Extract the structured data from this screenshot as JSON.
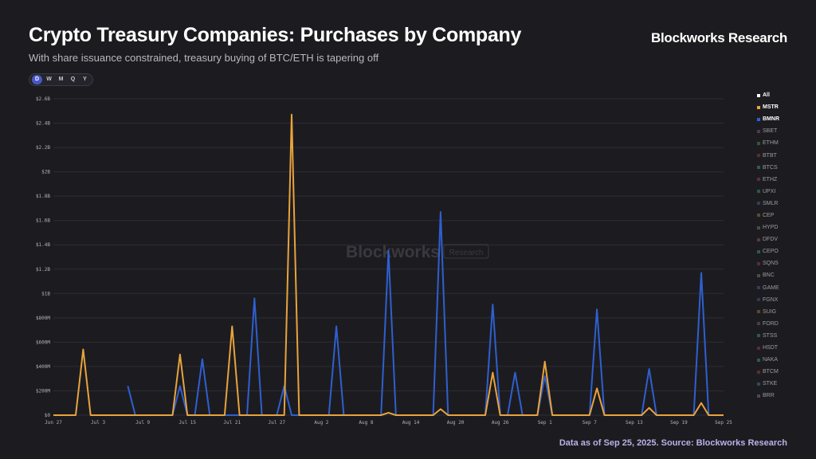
{
  "header": {
    "title": "Crypto Treasury Companies: Purchases by Company",
    "subtitle": "With share issuance constrained, treasury buying of BTC/ETH is tapering off",
    "brand": "Blockworks Research"
  },
  "footer": {
    "source": "Data as of Sep 25, 2025. Source: Blockworks Research"
  },
  "watermark": {
    "name": "Blockworks",
    "tag": "Research"
  },
  "range_selector": {
    "options": [
      "D",
      "W",
      "M",
      "Q",
      "Y"
    ],
    "selected": "D"
  },
  "legend": [
    {
      "label": "All",
      "color": "#ffffff",
      "active": true
    },
    {
      "label": "MSTR",
      "color": "#e8a33d",
      "active": true
    },
    {
      "label": "BMNR",
      "color": "#2f5fd0",
      "active": true
    },
    {
      "label": "SBET",
      "color": "#4a3a55",
      "active": false
    },
    {
      "label": "ETHM",
      "color": "#2f5a30",
      "active": false
    },
    {
      "label": "BTBT",
      "color": "#5a2d2d",
      "active": false
    },
    {
      "label": "BTCS",
      "color": "#2d5a55",
      "active": false
    },
    {
      "label": "ETHZ",
      "color": "#5a2d3a",
      "active": false
    },
    {
      "label": "UPXI",
      "color": "#2d5a3a",
      "active": false
    },
    {
      "label": "SMLR",
      "color": "#3a3a5a",
      "active": false
    },
    {
      "label": "CEP",
      "color": "#5a4a2d",
      "active": false
    },
    {
      "label": "HYPD",
      "color": "#4a4a4a",
      "active": false
    },
    {
      "label": "DFDV",
      "color": "#5a3a2d",
      "active": false
    },
    {
      "label": "CEPO",
      "color": "#2d5a4a",
      "active": false
    },
    {
      "label": "SQNS",
      "color": "#5a2d2d",
      "active": false
    },
    {
      "label": "BNC",
      "color": "#4a4a50",
      "active": false
    },
    {
      "label": "GAME",
      "color": "#3a3a5a",
      "active": false
    },
    {
      "label": "FGNX",
      "color": "#2d3a5a",
      "active": false
    },
    {
      "label": "SUIG",
      "color": "#5a4a2d",
      "active": false
    },
    {
      "label": "FORD",
      "color": "#4a3a4a",
      "active": false
    },
    {
      "label": "STSS",
      "color": "#2d5a4a",
      "active": false
    },
    {
      "label": "HSDT",
      "color": "#5a2d2d",
      "active": false
    },
    {
      "label": "NAKA",
      "color": "#2d5a4a",
      "active": false
    },
    {
      "label": "BTCM",
      "color": "#5a2d2d",
      "active": false
    },
    {
      "label": "STKE",
      "color": "#2d4a5a",
      "active": false
    },
    {
      "label": "BRR",
      "color": "#4a4a50",
      "active": false
    }
  ],
  "chart_data": {
    "type": "line",
    "title": "Crypto Treasury Companies: Purchases by Company",
    "y_ticks": [
      "$0",
      "$200M",
      "$400M",
      "$600M",
      "$800M",
      "$1B",
      "$1.2B",
      "$1.4B",
      "$1.6B",
      "$1.8B",
      "$2B",
      "$2.2B",
      "$2.4B",
      "$2.6B"
    ],
    "ylim": [
      0,
      2.6
    ],
    "y_unit": "$B",
    "x_ticks": [
      "Jun 27",
      "Jul 3",
      "Jul 9",
      "Jul 15",
      "Jul 21",
      "Jul 27",
      "Aug 2",
      "Aug 8",
      "Aug 14",
      "Aug 20",
      "Aug 26",
      "Sep 1",
      "Sep 7",
      "Sep 13",
      "Sep 19",
      "Sep 25"
    ],
    "xlim": [
      "2025-06-27",
      "2025-09-25"
    ],
    "grid": true,
    "legend_position": "right",
    "series": [
      {
        "name": "BMNR",
        "color": "#2f5fd0",
        "points": [
          [
            "2025-07-07",
            0.24
          ],
          [
            "2025-07-08",
            0
          ],
          [
            "2025-07-10",
            0
          ],
          [
            "2025-07-13",
            0
          ],
          [
            "2025-07-14",
            0.24
          ],
          [
            "2025-07-15",
            0
          ],
          [
            "2025-07-16",
            0
          ],
          [
            "2025-07-17",
            0.46
          ],
          [
            "2025-07-18",
            0
          ],
          [
            "2025-07-22",
            0
          ],
          [
            "2025-07-23",
            0
          ],
          [
            "2025-07-24",
            0.96
          ],
          [
            "2025-07-25",
            0
          ],
          [
            "2025-07-27",
            0
          ],
          [
            "2025-07-28",
            0.24
          ],
          [
            "2025-07-29",
            0
          ],
          [
            "2025-08-03",
            0
          ],
          [
            "2025-08-04",
            0.73
          ],
          [
            "2025-08-05",
            0
          ],
          [
            "2025-08-10",
            0
          ],
          [
            "2025-08-11",
            1.35
          ],
          [
            "2025-08-12",
            0
          ],
          [
            "2025-08-17",
            0
          ],
          [
            "2025-08-18",
            1.67
          ],
          [
            "2025-08-19",
            0
          ],
          [
            "2025-08-24",
            0
          ],
          [
            "2025-08-25",
            0.91
          ],
          [
            "2025-08-26",
            0
          ],
          [
            "2025-08-27",
            0
          ],
          [
            "2025-08-28",
            0.35
          ],
          [
            "2025-08-29",
            0
          ],
          [
            "2025-08-31",
            0
          ],
          [
            "2025-09-01",
            0.32
          ],
          [
            "2025-09-02",
            0
          ],
          [
            "2025-09-07",
            0
          ],
          [
            "2025-09-08",
            0.87
          ],
          [
            "2025-09-09",
            0
          ],
          [
            "2025-09-14",
            0
          ],
          [
            "2025-09-15",
            0.38
          ],
          [
            "2025-09-16",
            0
          ],
          [
            "2025-09-21",
            0
          ],
          [
            "2025-09-22",
            1.17
          ],
          [
            "2025-09-23",
            0
          ],
          [
            "2025-09-25",
            0
          ]
        ]
      },
      {
        "name": "MSTR",
        "color": "#e8a33d",
        "points": [
          [
            "2025-06-27",
            0
          ],
          [
            "2025-06-30",
            0
          ],
          [
            "2025-07-01",
            0.54
          ],
          [
            "2025-07-02",
            0
          ],
          [
            "2025-07-13",
            0
          ],
          [
            "2025-07-14",
            0.5
          ],
          [
            "2025-07-15",
            0
          ],
          [
            "2025-07-20",
            0
          ],
          [
            "2025-07-21",
            0.73
          ],
          [
            "2025-07-22",
            0
          ],
          [
            "2025-07-28",
            0
          ],
          [
            "2025-07-29",
            2.47
          ],
          [
            "2025-07-30",
            0
          ],
          [
            "2025-08-10",
            0
          ],
          [
            "2025-08-11",
            0.02
          ],
          [
            "2025-08-12",
            0
          ],
          [
            "2025-08-17",
            0
          ],
          [
            "2025-08-18",
            0.05
          ],
          [
            "2025-08-19",
            0
          ],
          [
            "2025-08-24",
            0
          ],
          [
            "2025-08-25",
            0.35
          ],
          [
            "2025-08-26",
            0
          ],
          [
            "2025-08-31",
            0
          ],
          [
            "2025-09-01",
            0.44
          ],
          [
            "2025-09-02",
            0
          ],
          [
            "2025-09-07",
            0
          ],
          [
            "2025-09-08",
            0.22
          ],
          [
            "2025-09-09",
            0
          ],
          [
            "2025-09-14",
            0
          ],
          [
            "2025-09-15",
            0.06
          ],
          [
            "2025-09-16",
            0
          ],
          [
            "2025-09-21",
            0
          ],
          [
            "2025-09-22",
            0.1
          ],
          [
            "2025-09-23",
            0
          ],
          [
            "2025-09-25",
            0
          ]
        ]
      }
    ]
  }
}
